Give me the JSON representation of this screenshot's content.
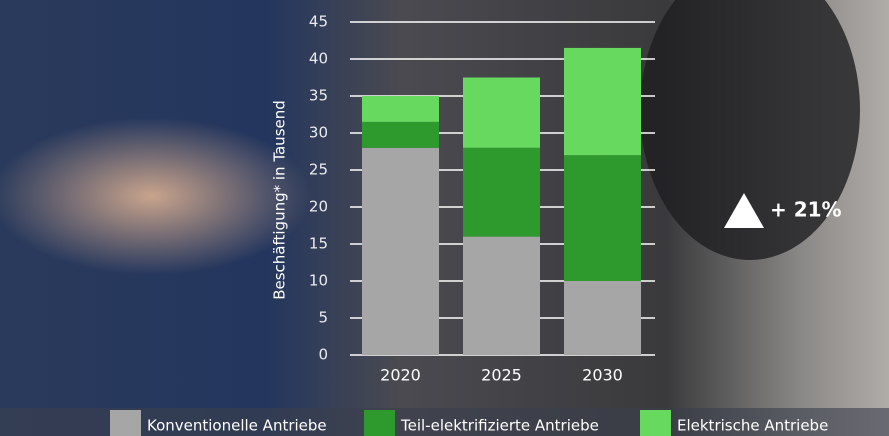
{
  "chart_data": {
    "type": "stacked-bar",
    "y_label": "Beschäftigung* in Tausend",
    "categories": [
      "2020",
      "2025",
      "2030"
    ],
    "series": [
      {
        "name": "Konventionelle Antriebe",
        "color": "#a6a6a6",
        "values": [
          28,
          16,
          10
        ]
      },
      {
        "name": "Teil-elektrifizierte Antriebe",
        "color": "#2e9a2e",
        "values": [
          3.5,
          12,
          17
        ]
      },
      {
        "name": "Elektrische Antriebe",
        "color": "#66d95e",
        "values": [
          3.5,
          9.5,
          14.5
        ]
      }
    ],
    "ylim": [
      0,
      45
    ],
    "yticks": [
      0,
      5,
      10,
      15,
      20,
      25,
      30,
      35,
      40,
      45
    ],
    "grid": true,
    "annotation": "+ 21%"
  }
}
